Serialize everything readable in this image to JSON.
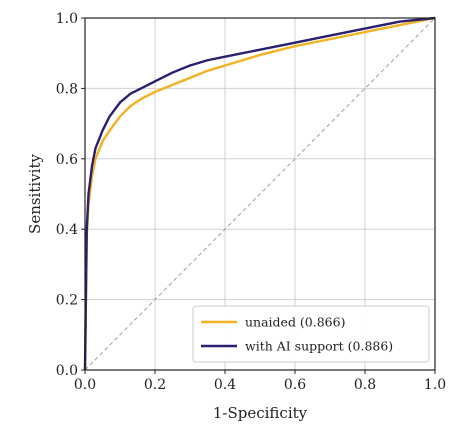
{
  "chart_data": {
    "type": "line",
    "xlabel": "1-Specificity",
    "ylabel": "Sensitivity",
    "xlim": [
      0.0,
      1.0
    ],
    "ylim": [
      0.0,
      1.0
    ],
    "xticks": [
      "0.0",
      "0.2",
      "0.4",
      "0.6",
      "0.8",
      "1.0"
    ],
    "yticks": [
      "0.0",
      "0.2",
      "0.4",
      "0.6",
      "0.8",
      "1.0"
    ],
    "grid": true,
    "legend_position": "bottom-right",
    "reference_line": {
      "x": [
        0,
        1
      ],
      "y": [
        0,
        1
      ],
      "style": "dashed",
      "color": "#9e9e9e"
    },
    "series": [
      {
        "name": "unaided (0.866)",
        "color": "#f2b221",
        "x": [
          0,
          0.005,
          0.01,
          0.02,
          0.03,
          0.05,
          0.07,
          0.1,
          0.13,
          0.16,
          0.2,
          0.25,
          0.3,
          0.35,
          0.4,
          0.5,
          0.6,
          0.7,
          0.8,
          0.9,
          1.0
        ],
        "y": [
          0,
          0.38,
          0.47,
          0.55,
          0.6,
          0.65,
          0.68,
          0.72,
          0.75,
          0.77,
          0.79,
          0.81,
          0.83,
          0.85,
          0.865,
          0.895,
          0.92,
          0.94,
          0.96,
          0.98,
          1.0
        ]
      },
      {
        "name": "with AI support (0.886)",
        "color": "#2b2070",
        "x": [
          0,
          0.005,
          0.01,
          0.02,
          0.03,
          0.05,
          0.07,
          0.1,
          0.13,
          0.16,
          0.2,
          0.25,
          0.3,
          0.35,
          0.4,
          0.5,
          0.6,
          0.7,
          0.8,
          0.9,
          1.0
        ],
        "y": [
          0,
          0.4,
          0.5,
          0.58,
          0.63,
          0.68,
          0.72,
          0.76,
          0.785,
          0.8,
          0.82,
          0.845,
          0.865,
          0.88,
          0.89,
          0.91,
          0.93,
          0.95,
          0.97,
          0.99,
          1.0
        ]
      }
    ]
  }
}
